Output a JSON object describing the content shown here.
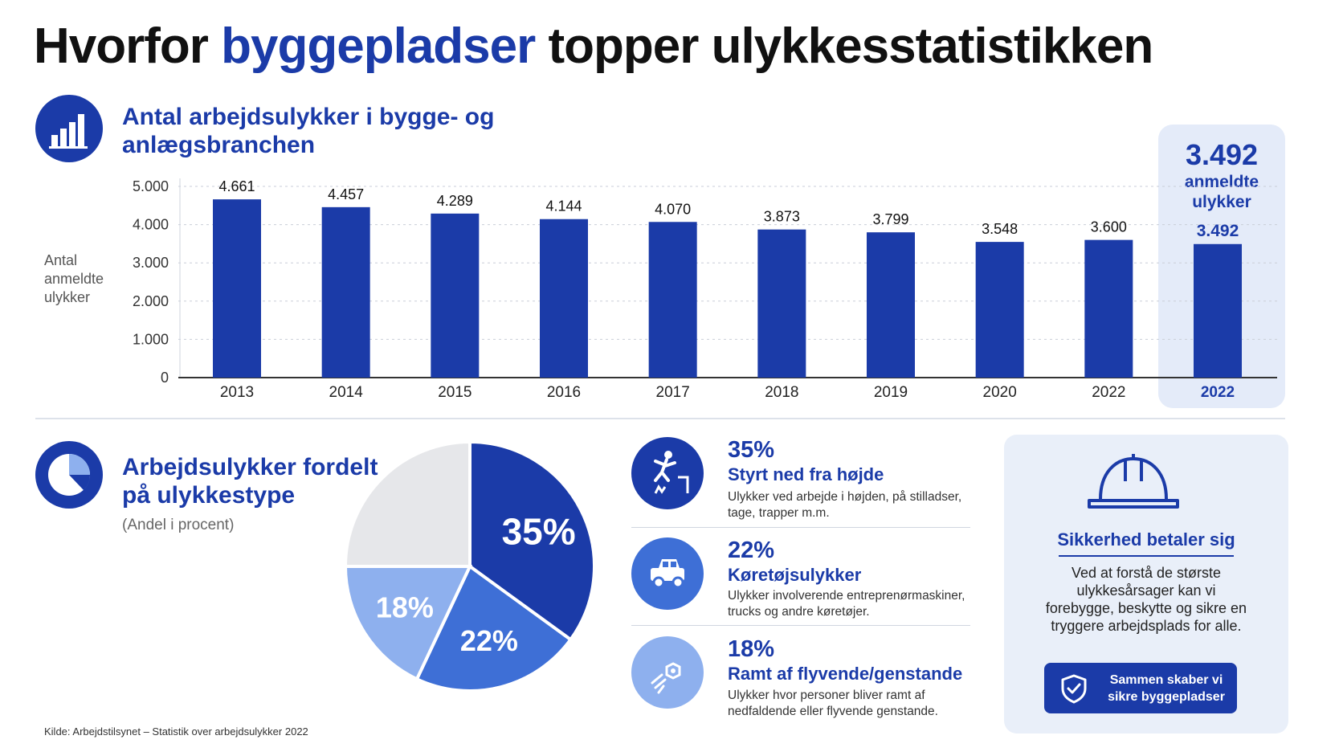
{
  "title": {
    "part1": "Hvorfor ",
    "accent": "byggepladser",
    "part2": " topper ulykkesstatistikken"
  },
  "bar_section": {
    "title": "Antal arbejdsulykker i bygge- og anlægsbranchen",
    "icon": "bar-chart-icon"
  },
  "highlight": {
    "big_value": "3.492",
    "label": "anmeldte ulykker"
  },
  "pie_section": {
    "title": "Arbejdsulykker fordelt på ulykkestype",
    "subtitle": "(Andel i procent)",
    "icon": "pie-chart-icon"
  },
  "items": [
    {
      "pct": "35%",
      "title": "Styrt ned fra højde",
      "desc": "Ulykker ved arbejde i højden, på stilladser, tage, trapper m.m.",
      "icon": "falling-person-icon",
      "color": "#1b3ba8"
    },
    {
      "pct": "22%",
      "title": "Køretøjsulykker",
      "desc": "Ulykker involverende entreprenørmaskiner, trucks og andre køretøjer.",
      "icon": "vehicle-icon",
      "color": "#3e6fd6"
    },
    {
      "pct": "18%",
      "title": "Ramt af flyvende/genstande",
      "desc": "Ulykker hvor personer bliver ramt af nedfaldende eller flyvende genstande.",
      "icon": "flying-object-icon",
      "color": "#8eb0ee"
    }
  ],
  "card": {
    "title": "Sikkerhed betaler sig",
    "text": "Ved at forstå de største ulykkesårsager kan vi forebygge, beskytte og sikre en tryggere arbejdsplads for alle.",
    "button_label": "Sammen skaber vi sikre byggepladser",
    "icon": "hard-hat-icon",
    "button_icon": "shield-check-icon"
  },
  "source": "Kilde: Arbejdstilsynet – Statistik over arbejdsulykker 2022",
  "colors": {
    "primary": "#1b3ba8",
    "mid": "#3e6fd6",
    "light": "#8eb0ee",
    "grey": "#e6e7ea",
    "highlight_bg": "#e4ebf9"
  },
  "chart_data": [
    {
      "type": "bar",
      "ylabel": "Antal anmeldte ulykker",
      "ylim": [
        0,
        5000
      ],
      "yticks": [
        "0",
        "1.000",
        "2.000",
        "3.000",
        "4.000",
        "5.000"
      ],
      "categories": [
        "2013",
        "2014",
        "2015",
        "2016",
        "2017",
        "2018",
        "2019",
        "2020",
        "2022",
        "2022"
      ],
      "values": [
        4661,
        4457,
        4289,
        4144,
        4070,
        3873,
        3799,
        3548,
        3600,
        3492
      ],
      "data_labels": [
        "4.661",
        "4.457",
        "4.289",
        "4.144",
        "4.070",
        "3.873",
        "3.799",
        "3.548",
        "3.600",
        "3.492"
      ],
      "highlight_index": 9,
      "grid": true
    },
    {
      "type": "pie",
      "slices": [
        {
          "label": "35%",
          "value": 35,
          "color": "#1b3ba8"
        },
        {
          "label": "22%",
          "value": 22,
          "color": "#3e6fd6"
        },
        {
          "label": "18%",
          "value": 18,
          "color": "#8eb0ee"
        },
        {
          "label": "",
          "value": 25,
          "color": "#e6e7ea"
        }
      ]
    }
  ]
}
